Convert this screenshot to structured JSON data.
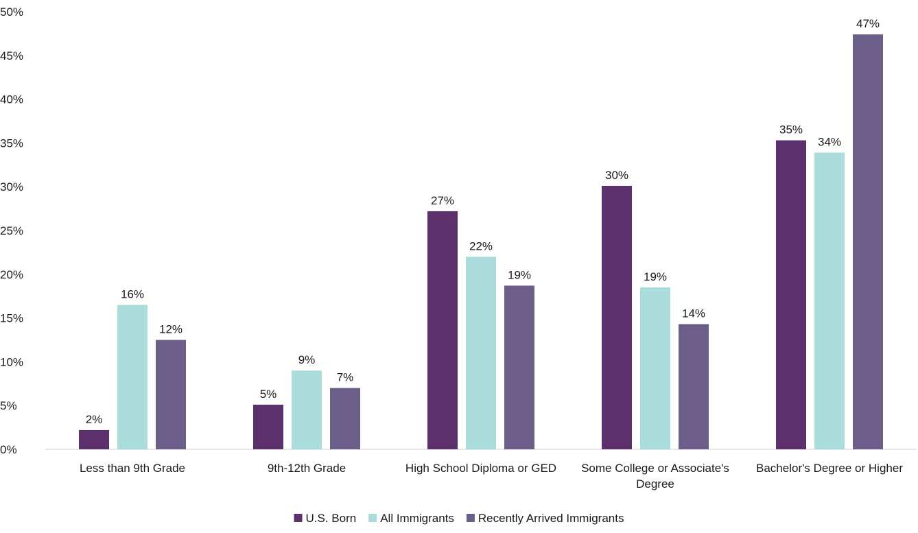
{
  "chart_data": {
    "type": "bar",
    "categories": [
      [
        "Less than 9th Grade"
      ],
      [
        "9th-12th Grade"
      ],
      [
        "High School Diploma or GED"
      ],
      [
        "Some College or Associate's",
        "Degree"
      ],
      [
        "Bachelor's Degree or Higher"
      ]
    ],
    "series": [
      {
        "name": "U.S. Born",
        "color": "#5c306b",
        "values": [
          2.2,
          5.1,
          27.2,
          30.1,
          35.3
        ],
        "labels": [
          "2%",
          "5%",
          "27%",
          "30%",
          "35%"
        ]
      },
      {
        "name": "All Immigrants",
        "color": "#a9dcdb",
        "values": [
          16.5,
          9.0,
          22.0,
          18.5,
          33.9
        ],
        "labels": [
          "16%",
          "9%",
          "22%",
          "19%",
          "34%"
        ]
      },
      {
        "name": "Recently Arrived Immigrants",
        "color": "#6b5f89",
        "values": [
          12.5,
          7.0,
          18.7,
          14.3,
          47.4
        ],
        "labels": [
          "12%",
          "7%",
          "19%",
          "14%",
          "47%"
        ]
      }
    ],
    "ylim": [
      0,
      50
    ],
    "yticks": [
      "0%",
      "5%",
      "10%",
      "15%",
      "20%",
      "25%",
      "30%",
      "35%",
      "40%",
      "45%",
      "50%"
    ],
    "legend_position": "bottom",
    "grid": false
  }
}
